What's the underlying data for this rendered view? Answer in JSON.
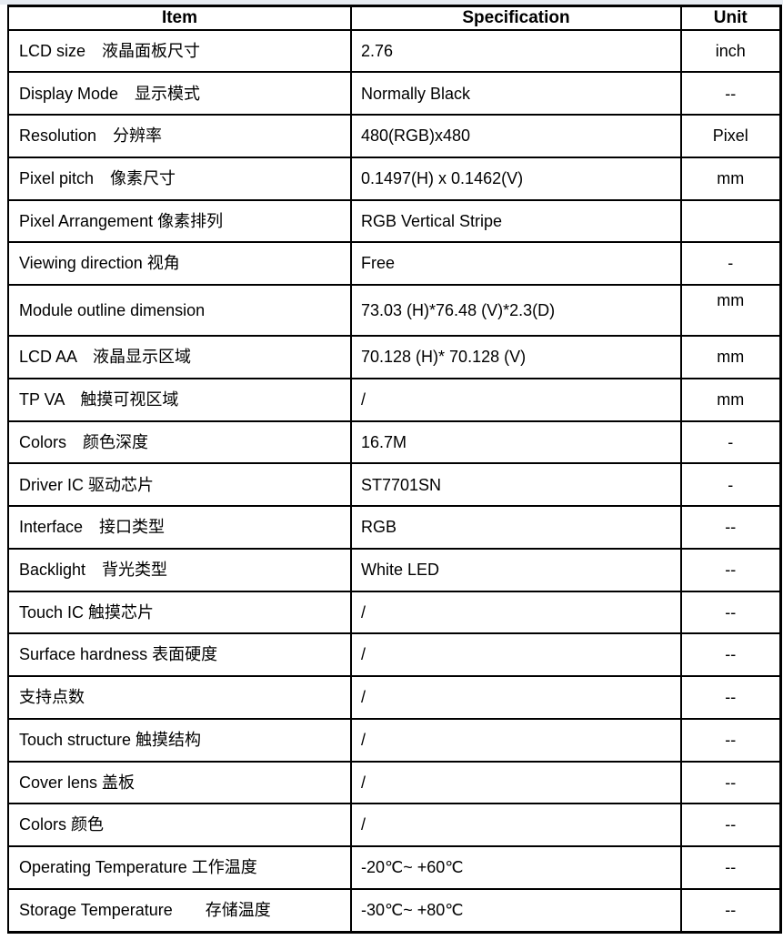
{
  "page": {
    "background": "#ffffff",
    "top_strip_color": "#e6ebf1",
    "border_color": "#000000",
    "text_color": "#000000"
  },
  "table": {
    "headers": [
      "Item",
      "Specification",
      "Unit"
    ],
    "rows": [
      {
        "item": "LCD size　液晶面板尺寸",
        "spec": "2.76",
        "unit": "inch"
      },
      {
        "item": "Display Mode　显示模式",
        "spec": "Normally Black",
        "unit": "--"
      },
      {
        "item": "Resolution　分辨率",
        "spec": "480(RGB)x480",
        "unit": "Pixel"
      },
      {
        "item": "Pixel pitch　像素尺寸",
        "spec": "0.1497(H) x 0.1462(V)",
        "unit": "mm"
      },
      {
        "item": "Pixel Arrangement 像素排列",
        "spec": "RGB Vertical Stripe",
        "unit": ""
      },
      {
        "item": "Viewing direction 视角",
        "spec": "Free",
        "unit": "-"
      },
      {
        "item": "Module outline dimension",
        "spec": "73.03 (H)*76.48 (V)*2.3(D)",
        "unit": "mm",
        "unit_valign": "top"
      },
      {
        "item": "LCD AA　液晶显示区域",
        "spec": "70.128 (H)* 70.128 (V)",
        "unit": "mm"
      },
      {
        "item": "TP VA　触摸可视区域",
        "spec": "/",
        "unit": "mm"
      },
      {
        "item": "Colors　颜色深度",
        "spec": "16.7M",
        "unit": "-"
      },
      {
        "item": "Driver IC 驱动芯片",
        "spec": "ST7701SN",
        "unit": "-"
      },
      {
        "item": "Interface　接口类型",
        "spec": "RGB",
        "unit": "--"
      },
      {
        "item": "Backlight　背光类型",
        "spec": "White LED",
        "unit": "--"
      },
      {
        "item": "Touch IC 触摸芯片",
        "spec": "/",
        "unit": "--"
      },
      {
        "item": "Surface hardness 表面硬度",
        "spec": "/",
        "unit": "--"
      },
      {
        "item": "支持点数",
        "spec": "/",
        "unit": "--"
      },
      {
        "item": "Touch structure 触摸结构",
        "spec": "/",
        "unit": "--"
      },
      {
        "item": "Cover lens 盖板",
        "spec": "/",
        "unit": "--"
      },
      {
        "item": "Colors 颜色",
        "spec": "/",
        "unit": "--"
      },
      {
        "item": "Operating Temperature 工作温度",
        "spec": "-20℃~ +60℃",
        "unit": "--"
      },
      {
        "item": "Storage Temperature　　存储温度",
        "spec": "-30℃~ +80℃",
        "unit": "--"
      }
    ]
  }
}
